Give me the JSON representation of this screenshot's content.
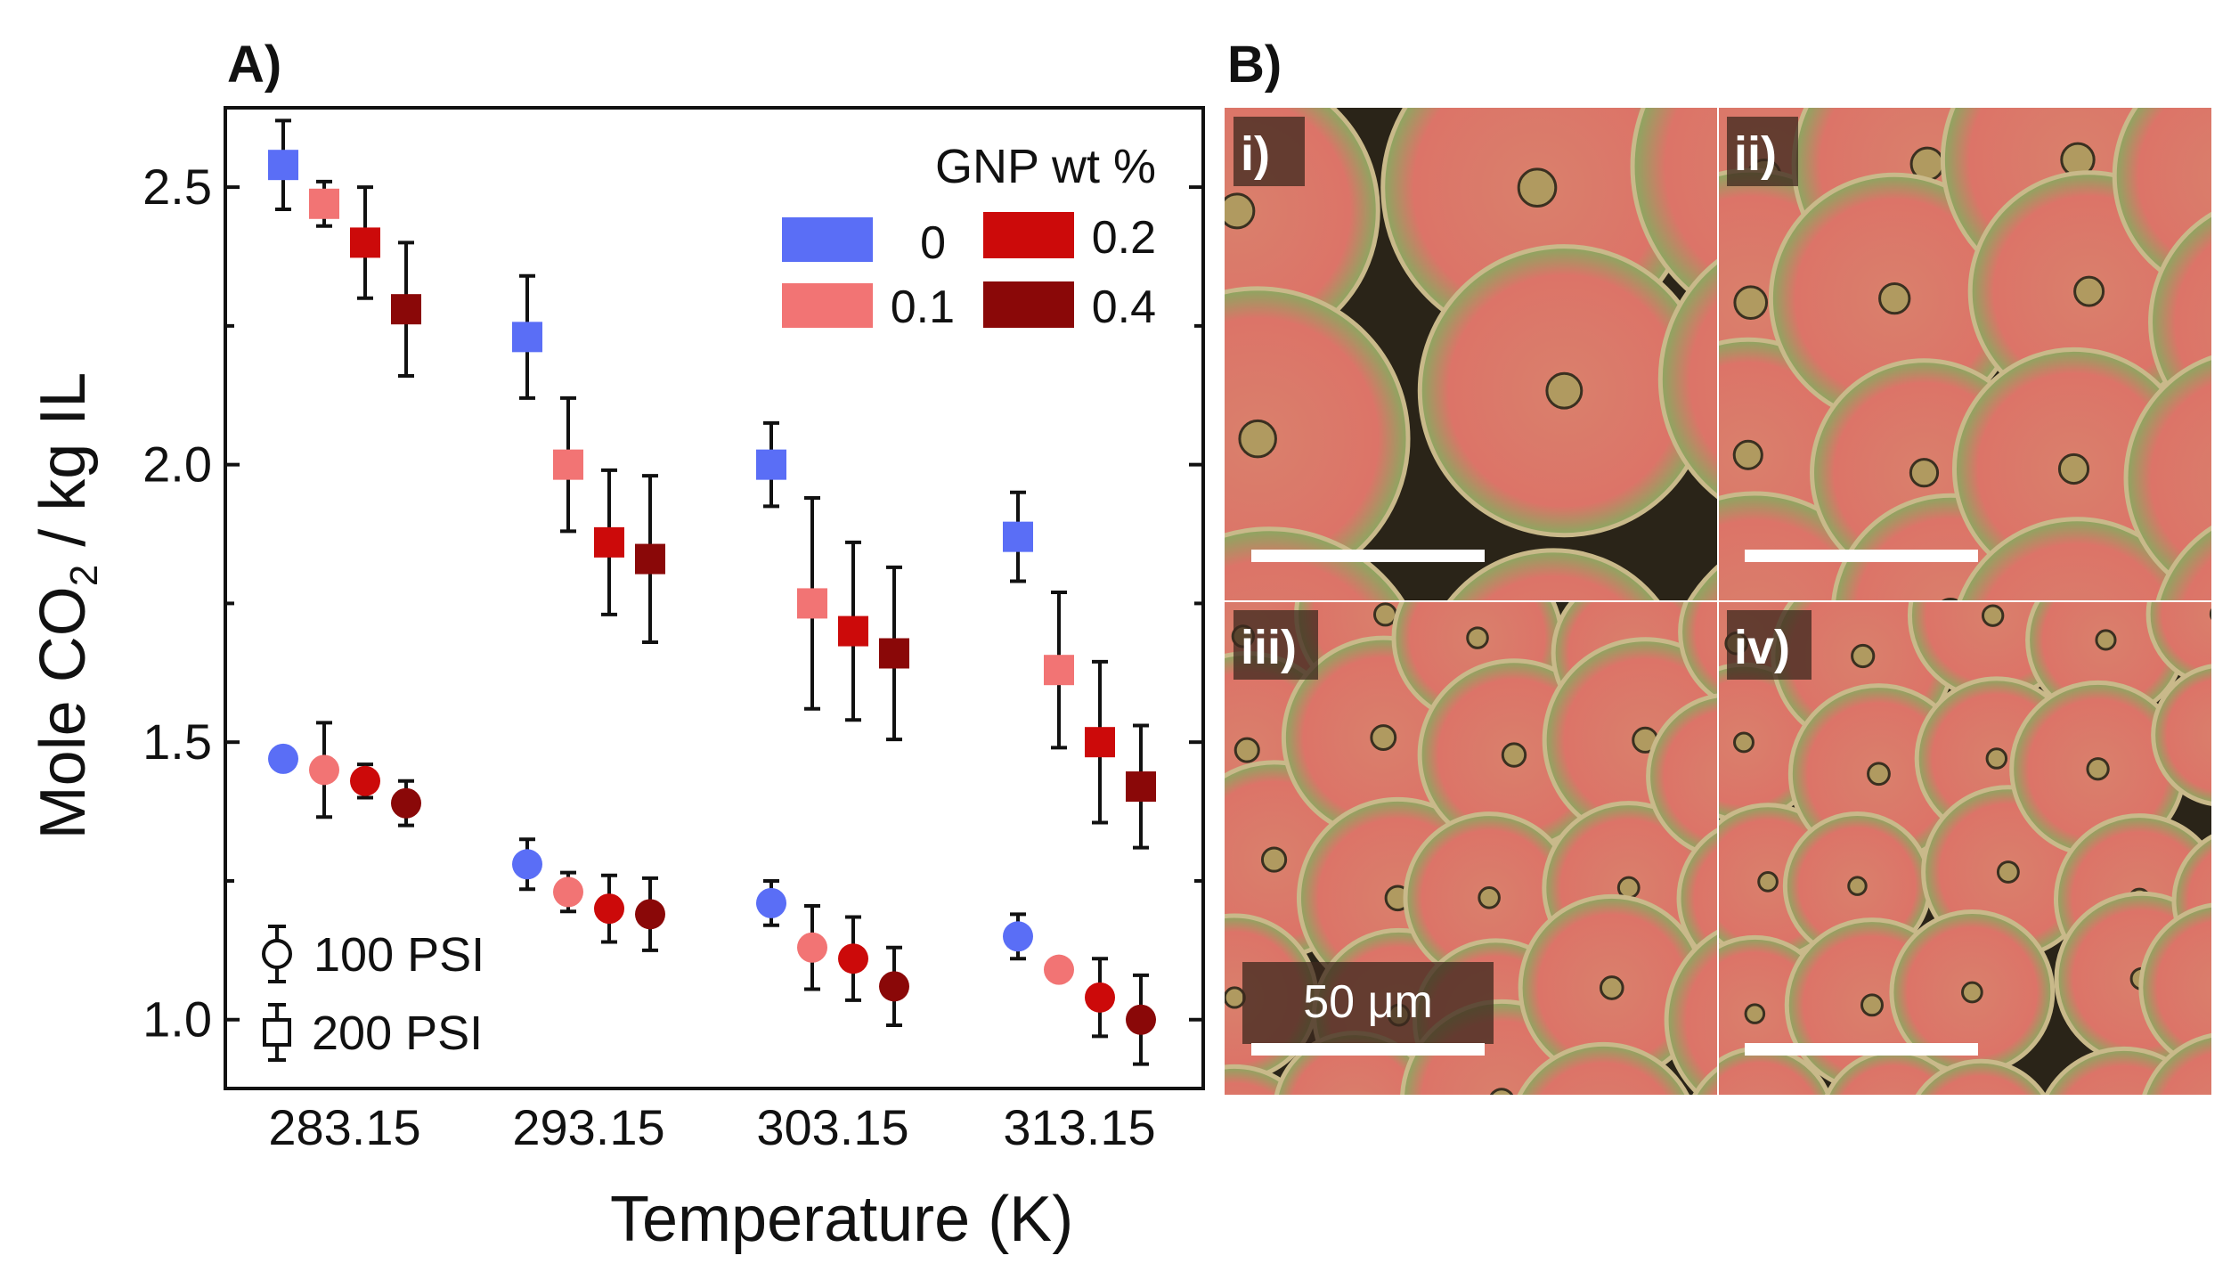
{
  "panel_labels": {
    "a": "A)",
    "b": "B)"
  },
  "chart_data": {
    "type": "scatter",
    "title": "",
    "xlabel": "Temperature (K)",
    "ylabel_prefix": "Mole CO",
    "ylabel_sub": "2",
    "ylabel_suffix": " / kg IL",
    "categories": [
      "283.15",
      "293.15",
      "303.15",
      "313.15"
    ],
    "yticks": [
      "1.0",
      "1.5",
      "2.0",
      "2.5"
    ],
    "ylim": [
      0.876,
      2.643
    ],
    "legend_title": "GNP wt %",
    "legend_placement": "top-right",
    "gnp_levels": [
      {
        "label": "0",
        "color": "#5a6ef6"
      },
      {
        "label": "0.1",
        "color": "#f27474"
      },
      {
        "label": "0.2",
        "color": "#cc0a0a"
      },
      {
        "label": "0.4",
        "color": "#8a0808"
      }
    ],
    "marker_legend": [
      {
        "label": "100 PSI",
        "marker": "circle"
      },
      {
        "label": "200 PSI",
        "marker": "square"
      }
    ],
    "series": [
      {
        "name": "200 PSI",
        "marker": "square",
        "values": [
          [
            2.54,
            2.47,
            2.4,
            2.28
          ],
          [
            2.23,
            2.0,
            1.86,
            1.83
          ],
          [
            2.0,
            1.75,
            1.7,
            1.66
          ],
          [
            1.87,
            1.63,
            1.5,
            1.42
          ]
        ],
        "errors": [
          [
            0.08,
            0.04,
            0.1,
            0.12
          ],
          [
            0.11,
            0.12,
            0.13,
            0.15
          ],
          [
            0.075,
            0.19,
            0.16,
            0.155
          ],
          [
            0.08,
            0.14,
            0.145,
            0.11
          ]
        ]
      },
      {
        "name": "100 PSI",
        "marker": "circle",
        "values": [
          [
            1.47,
            1.45,
            1.43,
            1.39
          ],
          [
            1.28,
            1.23,
            1.2,
            1.19
          ],
          [
            1.21,
            1.13,
            1.11,
            1.06
          ],
          [
            1.15,
            1.09,
            1.04,
            1.0
          ]
        ],
        "errors": [
          [
            0,
            0.085,
            0.03,
            0.04
          ],
          [
            0.045,
            0.035,
            0.06,
            0.065
          ],
          [
            0.04,
            0.075,
            0.075,
            0.07
          ],
          [
            0.04,
            0,
            0.07,
            0.08
          ]
        ]
      }
    ]
  },
  "micrographs": {
    "panels": [
      {
        "label": "i)"
      },
      {
        "label": "ii)"
      },
      {
        "label": "iii)"
      },
      {
        "label": "iv)"
      }
    ],
    "scale_bar_label": "50 μm"
  }
}
